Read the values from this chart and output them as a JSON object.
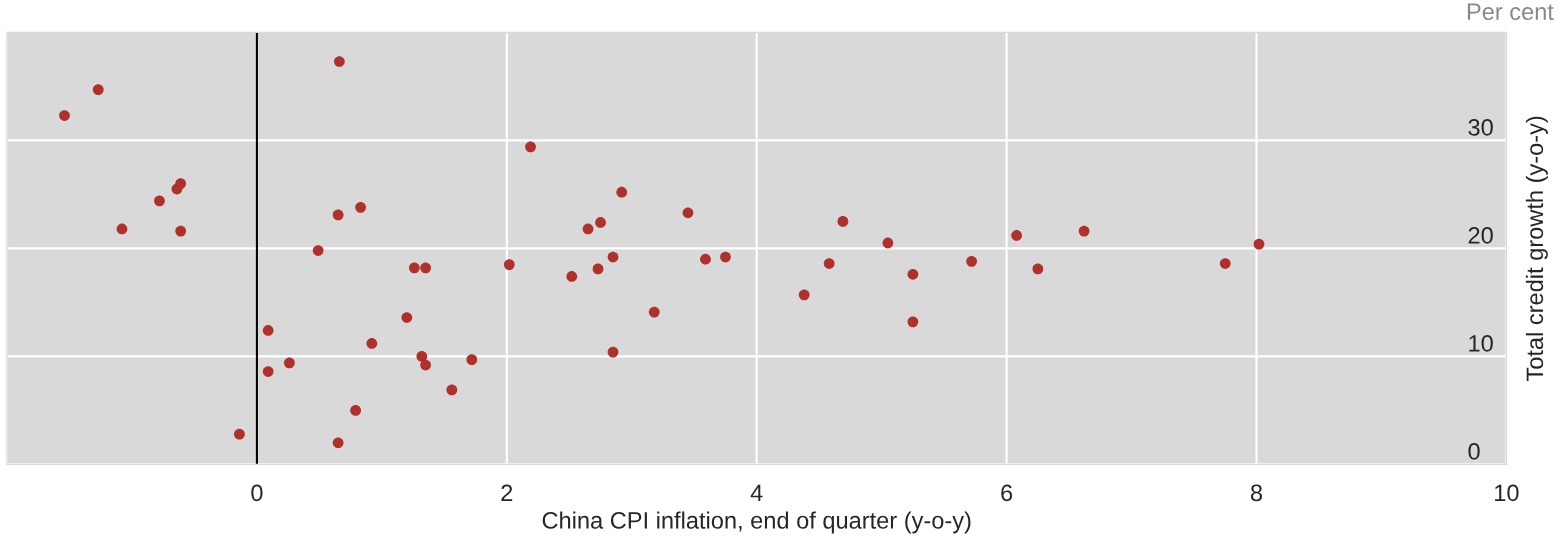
{
  "chart_data": {
    "type": "scatter",
    "xlabel": "China CPI inflation, end of quarter (y-o-y)",
    "ylabel": "Total credit growth (y-o-y)",
    "annotations": [
      "Per cent"
    ],
    "x": [
      -1.54,
      -1.27,
      -1.08,
      -0.78,
      -0.64,
      -0.61,
      -0.61,
      -0.14,
      0.66,
      0.09,
      0.09,
      0.26,
      0.49,
      0.65,
      0.83,
      0.79,
      0.65,
      0.92,
      1.2,
      1.26,
      1.35,
      1.32,
      1.35,
      1.56,
      1.72,
      2.02,
      2.19,
      2.52,
      2.65,
      2.73,
      2.75,
      2.85,
      2.85,
      2.92,
      3.18,
      3.45,
      3.59,
      3.75,
      4.38,
      4.58,
      4.69,
      5.05,
      5.25,
      5.25,
      5.72,
      6.08,
      6.25,
      6.62,
      7.75,
      8.02
    ],
    "values": [
      32.3,
      34.7,
      21.8,
      24.4,
      25.5,
      26.0,
      21.6,
      2.8,
      37.3,
      12.4,
      8.6,
      9.4,
      19.8,
      23.1,
      23.8,
      5.0,
      2.0,
      11.2,
      13.6,
      18.2,
      18.2,
      10.0,
      9.2,
      6.9,
      9.7,
      18.5,
      29.4,
      17.4,
      21.8,
      18.1,
      22.4,
      19.2,
      10.4,
      25.2,
      14.1,
      23.3,
      19.0,
      19.2,
      15.7,
      18.6,
      22.5,
      20.5,
      17.6,
      13.2,
      18.8,
      21.2,
      18.1,
      21.6,
      18.6,
      20.4
    ],
    "color": "#b0302c",
    "marker": "circle",
    "xlim": [
      -2,
      10
    ],
    "xticks": [
      {
        "value": -2,
        "label": null
      },
      0,
      2,
      4,
      6,
      8,
      10
    ],
    "ylim": [
      0,
      40
    ],
    "yticks": [
      0,
      10,
      20,
      30
    ],
    "grid": true,
    "ref_lines": [
      {
        "axis": "x",
        "value": 0,
        "color": "#000000",
        "line_style": "solid"
      }
    ]
  }
}
